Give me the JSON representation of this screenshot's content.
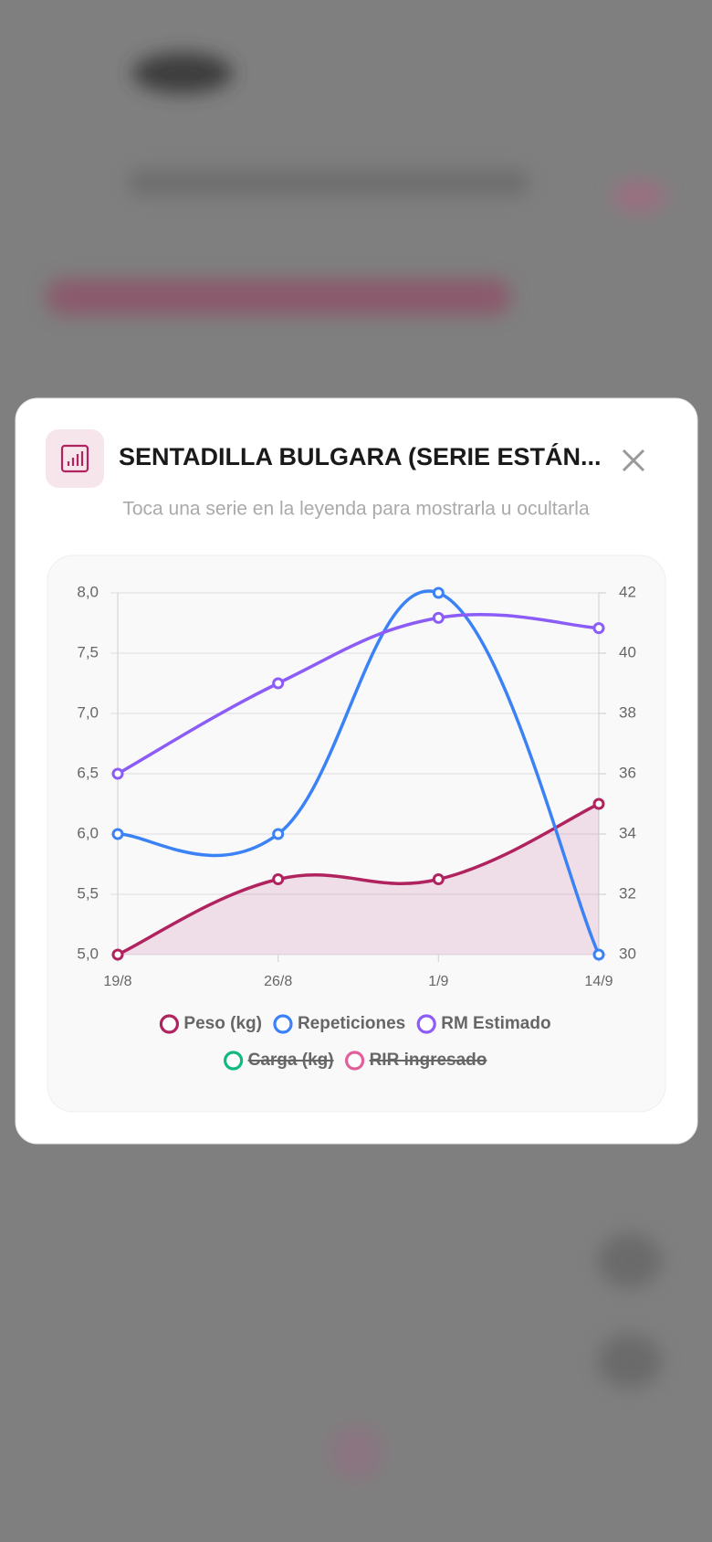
{
  "header": {
    "title": "SENTADILLA BULGARA (SERIE ESTÁN...",
    "subtitle": "Toca una serie en la leyenda para mostrarla u ocultarla"
  },
  "chart_data": {
    "type": "line",
    "categories": [
      "19/8",
      "26/8",
      "1/9",
      "14/9"
    ],
    "series": [
      {
        "name": "Peso (kg)",
        "color": "#b0235f",
        "axis": "y2",
        "fill": true,
        "values": [
          30,
          32.5,
          32.5,
          35
        ]
      },
      {
        "name": "Repeticiones",
        "color": "#3b82f6",
        "values": [
          6,
          6,
          8,
          5
        ]
      },
      {
        "name": "RM Estimado",
        "color": "#8b5cf6",
        "axis": "y2",
        "values": [
          36,
          39,
          41.17,
          40.83
        ]
      },
      {
        "name": "Carga (kg)",
        "color": "#10b981",
        "hidden": true
      },
      {
        "name": "RIR ingresado",
        "color": "#e0609c",
        "hidden": true
      }
    ],
    "ylim": [
      5,
      8
    ],
    "yticks": [
      {
        "value": 5,
        "label": "5,0"
      },
      {
        "value": 5.5,
        "label": "5,5"
      },
      {
        "value": 6,
        "label": "6,0"
      },
      {
        "value": 6.5,
        "label": "6,5"
      },
      {
        "value": 7,
        "label": "7,0"
      },
      {
        "value": 7.5,
        "label": "7,5"
      },
      {
        "value": 8,
        "label": "8,0"
      }
    ],
    "y2lim": [
      30,
      42
    ],
    "y2ticks": [
      30,
      32,
      34,
      36,
      38,
      40,
      42
    ],
    "grid": true,
    "legend": "bottom"
  }
}
